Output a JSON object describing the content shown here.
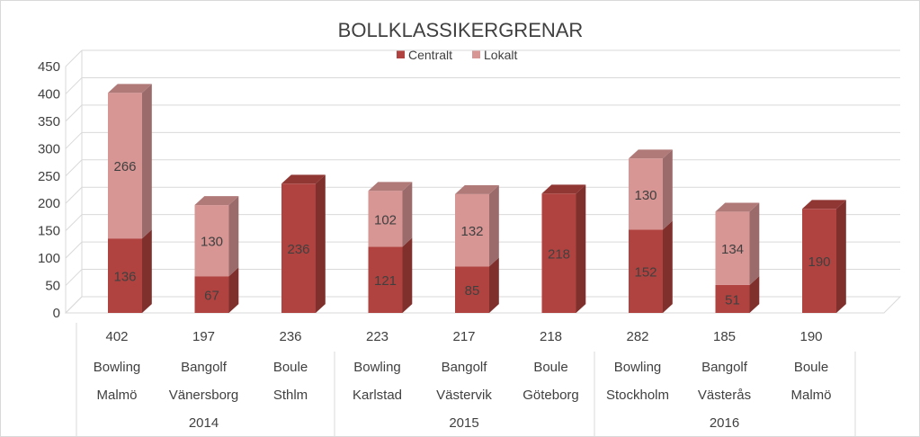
{
  "chart_data": {
    "type": "bar",
    "stacked": true,
    "three_d": true,
    "title": "BOLLKLASSIKERGRENAR",
    "legend": {
      "position": "top",
      "entries": [
        "Centralt",
        "Lokalt"
      ]
    },
    "ylim": [
      0,
      450
    ],
    "yticks": [
      0,
      50,
      100,
      150,
      200,
      250,
      300,
      350,
      400,
      450
    ],
    "grid": true,
    "categories": [
      {
        "total": "402",
        "sport": "Bowling",
        "place": "Malmö"
      },
      {
        "total": "197",
        "sport": "Bangolf",
        "place": "Vänersborg"
      },
      {
        "total": "236",
        "sport": "Boule",
        "place": "Sthlm"
      },
      {
        "total": "223",
        "sport": "Bowling",
        "place": "Karlstad"
      },
      {
        "total": "217",
        "sport": "Bangolf",
        "place": "Västervik"
      },
      {
        "total": "218",
        "sport": "Boule",
        "place": "Göteborg"
      },
      {
        "total": "282",
        "sport": "Bowling",
        "place": "Stockholm"
      },
      {
        "total": "185",
        "sport": "Bangolf",
        "place": "Västerås"
      },
      {
        "total": "190",
        "sport": "Boule",
        "place": "Malmö"
      }
    ],
    "groups": [
      {
        "label": "2014",
        "from": 0,
        "to": 2
      },
      {
        "label": "2015",
        "from": 3,
        "to": 5
      },
      {
        "label": "2016",
        "from": 6,
        "to": 8
      }
    ],
    "series": [
      {
        "name": "Centralt",
        "color": "#b0433f",
        "values": [
          136,
          67,
          236,
          121,
          85,
          218,
          152,
          51,
          190
        ]
      },
      {
        "name": "Lokalt",
        "color": "#d79594",
        "values": [
          266,
          130,
          null,
          102,
          132,
          null,
          130,
          134,
          null
        ]
      }
    ]
  }
}
